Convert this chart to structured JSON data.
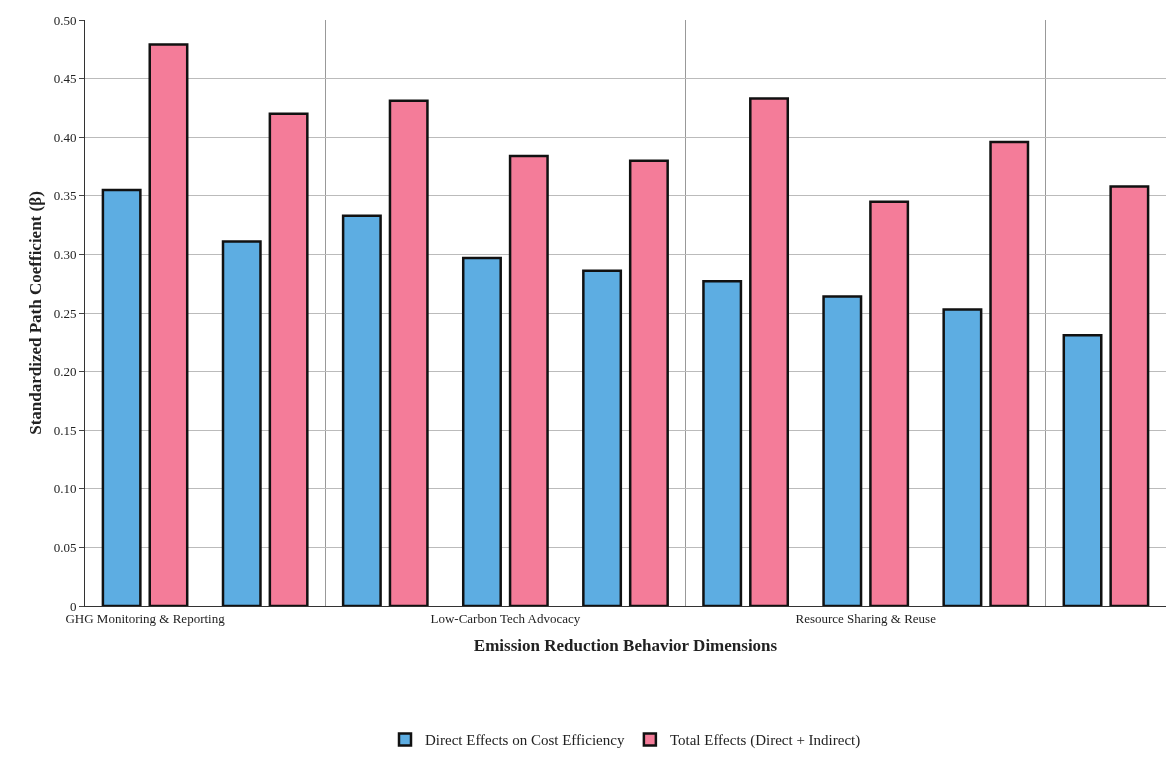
{
  "chart_data": {
    "type": "bar",
    "xlabel": "Emission Reduction Behavior Dimensions",
    "ylabel": "Standardized Path Coefficient (β)",
    "categories": [
      "GHG Monitoring & Reporting",
      null,
      null,
      "Low-Carbon Tech Advocacy",
      null,
      null,
      "Resource Sharing & Reuse",
      null,
      null
    ],
    "series": [
      {
        "name": "Direct Effects on Cost Efficiency",
        "color": "#5dade2",
        "values": [
          0.355,
          0.311,
          0.333,
          0.297,
          0.286,
          0.277,
          0.264,
          0.253,
          0.231
        ]
      },
      {
        "name": "Total Effects (Direct + Indirect)",
        "color": "#f47c99",
        "values": [
          0.479,
          0.42,
          0.431,
          0.384,
          0.38,
          0.433,
          0.345,
          0.396,
          0.358
        ]
      }
    ],
    "ylim": [
      0,
      0.5
    ],
    "yticks": [
      0,
      0.05,
      {
        "value": 0.1,
        "label": "0.10"
      },
      0.15,
      {
        "value": 0.2,
        "label": "0.20"
      },
      0.25,
      {
        "value": 0.3,
        "label": "0.30"
      },
      0.35,
      {
        "value": 0.4,
        "label": "0.40"
      },
      0.45,
      {
        "value": 0.5,
        "label": "0.50"
      }
    ],
    "grid": true,
    "legend": "bottom"
  }
}
